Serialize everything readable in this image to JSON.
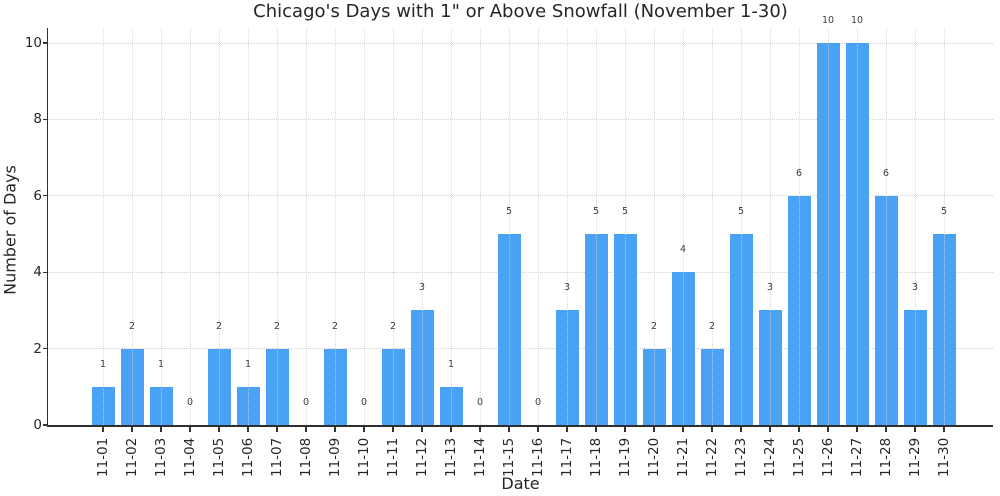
{
  "chart_data": {
    "type": "bar",
    "title": "Chicago's Days with 1\" or Above Snowfall (November 1-30)",
    "xlabel": "Date",
    "ylabel": "Number of Days",
    "categories": [
      "11-01",
      "11-02",
      "11-03",
      "11-04",
      "11-05",
      "11-06",
      "11-07",
      "11-08",
      "11-09",
      "11-10",
      "11-11",
      "11-12",
      "11-13",
      "11-14",
      "11-15",
      "11-16",
      "11-17",
      "11-18",
      "11-19",
      "11-20",
      "11-21",
      "11-22",
      "11-23",
      "11-24",
      "11-25",
      "11-26",
      "11-27",
      "11-28",
      "11-29",
      "11-30"
    ],
    "values": [
      1,
      2,
      1,
      0,
      2,
      1,
      2,
      0,
      2,
      0,
      2,
      3,
      1,
      0,
      5,
      0,
      3,
      5,
      5,
      2,
      4,
      2,
      5,
      3,
      6,
      10,
      10,
      6,
      3,
      5
    ],
    "yticks": [
      0,
      2,
      4,
      6,
      8,
      10
    ],
    "ylim": [
      0,
      10.4
    ],
    "x_tick_rotation": 90,
    "value_labels_above_bars": true,
    "legend_position": "none",
    "grid": {
      "visible": true,
      "style": "dotted",
      "color": "#d2d2d2",
      "axes": "both"
    },
    "bar_color": "#4aa2f4",
    "text_color": "#262626",
    "value_label_color": "#3d3d3d",
    "spine_color": "#2e2e2e",
    "background": "#ffffff"
  }
}
